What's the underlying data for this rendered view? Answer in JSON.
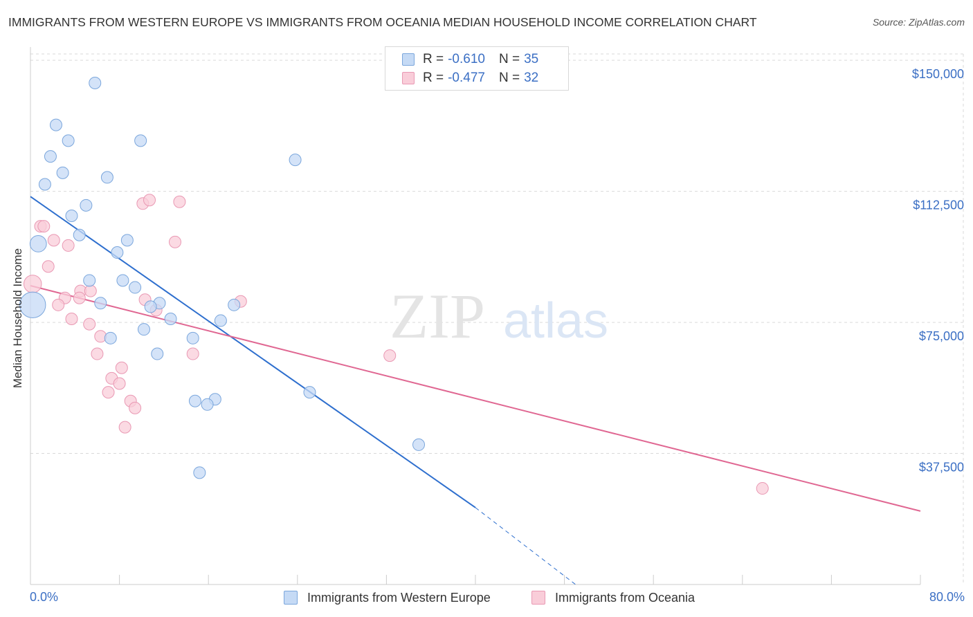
{
  "title": "IMMIGRANTS FROM WESTERN EUROPE VS IMMIGRANTS FROM OCEANIA MEDIAN HOUSEHOLD INCOME CORRELATION CHART",
  "source": "Source: ZipAtlas.com",
  "watermark": {
    "zip": "ZIP",
    "atlas": "atlas"
  },
  "colors": {
    "blue_fill": "#c5daf5",
    "blue_stroke": "#7aa6dc",
    "blue_line": "#2e6fce",
    "pink_fill": "#f9cdd9",
    "pink_stroke": "#e998b3",
    "pink_line": "#e06792",
    "axis_text": "#3b6fc4",
    "grid": "#d9d9d9"
  },
  "legend_top": {
    "rows": [
      {
        "r_label": "R = ",
        "r_value": "-0.610",
        "n_label": "N = ",
        "n_value": "35"
      },
      {
        "r_label": "R = ",
        "r_value": "-0.477",
        "n_label": "N = ",
        "n_value": "32"
      }
    ]
  },
  "legend_bottom": {
    "series1": "Immigrants from Western Europe",
    "series2": "Immigrants from Oceania"
  },
  "chart_data": {
    "type": "scatter",
    "title": "IMMIGRANTS FROM WESTERN EUROPE VS IMMIGRANTS FROM OCEANIA MEDIAN HOUSEHOLD INCOME CORRELATION CHART",
    "xlabel": "",
    "ylabel": "Median Household Income",
    "xlim": [
      0,
      80
    ],
    "ylim": [
      0,
      153000
    ],
    "x_tick_labels": [
      "0.0%",
      "80.0%"
    ],
    "y_ticks": [
      37500,
      75000,
      112500,
      150000
    ],
    "y_tick_labels": [
      "$37,500",
      "$75,000",
      "$112,500",
      "$150,000"
    ],
    "grid": true,
    "series": [
      {
        "name": "Immigrants from Western Europe",
        "r": -0.61,
        "n": 35,
        "trend": {
          "x0": 0,
          "y0": 111000,
          "x1": 40,
          "y1": 22000,
          "dash_x1": 49,
          "dash_y1": 0
        },
        "points": [
          {
            "x": 5.8,
            "y": 143500,
            "s": 1
          },
          {
            "x": 2.3,
            "y": 131500,
            "s": 1
          },
          {
            "x": 3.4,
            "y": 127000,
            "s": 1
          },
          {
            "x": 9.9,
            "y": 127000,
            "s": 1
          },
          {
            "x": 1.8,
            "y": 122500,
            "s": 1
          },
          {
            "x": 2.9,
            "y": 117800,
            "s": 1
          },
          {
            "x": 23.8,
            "y": 121500,
            "s": 1
          },
          {
            "x": 6.9,
            "y": 116500,
            "s": 1
          },
          {
            "x": 1.3,
            "y": 114500,
            "s": 1
          },
          {
            "x": 5.0,
            "y": 108500,
            "s": 1
          },
          {
            "x": 3.7,
            "y": 105500,
            "s": 1
          },
          {
            "x": 4.4,
            "y": 100000,
            "s": 1
          },
          {
            "x": 0.7,
            "y": 97500,
            "s": 1.4
          },
          {
            "x": 8.7,
            "y": 98500,
            "s": 1
          },
          {
            "x": 7.8,
            "y": 95000,
            "s": 1
          },
          {
            "x": 5.3,
            "y": 87000,
            "s": 1
          },
          {
            "x": 8.3,
            "y": 87000,
            "s": 1
          },
          {
            "x": 9.4,
            "y": 85000,
            "s": 1
          },
          {
            "x": 0.2,
            "y": 80000,
            "s": 2.2
          },
          {
            "x": 6.3,
            "y": 80500,
            "s": 1
          },
          {
            "x": 11.6,
            "y": 80500,
            "s": 1
          },
          {
            "x": 10.8,
            "y": 79500,
            "s": 1
          },
          {
            "x": 12.6,
            "y": 76000,
            "s": 1
          },
          {
            "x": 17.1,
            "y": 75500,
            "s": 1
          },
          {
            "x": 18.3,
            "y": 80000,
            "s": 1
          },
          {
            "x": 10.2,
            "y": 73000,
            "s": 1
          },
          {
            "x": 7.2,
            "y": 70500,
            "s": 1
          },
          {
            "x": 14.6,
            "y": 70500,
            "s": 1
          },
          {
            "x": 11.4,
            "y": 66000,
            "s": 1
          },
          {
            "x": 25.1,
            "y": 55000,
            "s": 1
          },
          {
            "x": 14.8,
            "y": 52500,
            "s": 1
          },
          {
            "x": 16.6,
            "y": 53000,
            "s": 1
          },
          {
            "x": 15.9,
            "y": 51500,
            "s": 1
          },
          {
            "x": 34.9,
            "y": 40000,
            "s": 1
          },
          {
            "x": 15.2,
            "y": 32000,
            "s": 1
          }
        ]
      },
      {
        "name": "Immigrants from Oceania",
        "r": -0.477,
        "n": 32,
        "trend": {
          "x0": 0,
          "y0": 85500,
          "x1": 80,
          "y1": 21000
        },
        "points": [
          {
            "x": 10.1,
            "y": 109000,
            "s": 1
          },
          {
            "x": 10.7,
            "y": 110000,
            "s": 1
          },
          {
            "x": 13.4,
            "y": 109500,
            "s": 1
          },
          {
            "x": 0.9,
            "y": 102500,
            "s": 1
          },
          {
            "x": 1.2,
            "y": 102500,
            "s": 1
          },
          {
            "x": 2.1,
            "y": 98500,
            "s": 1
          },
          {
            "x": 13.0,
            "y": 98000,
            "s": 1
          },
          {
            "x": 3.4,
            "y": 97000,
            "s": 1
          },
          {
            "x": 1.6,
            "y": 91000,
            "s": 1
          },
          {
            "x": 0.2,
            "y": 86000,
            "s": 1.5
          },
          {
            "x": 4.5,
            "y": 84000,
            "s": 1
          },
          {
            "x": 5.4,
            "y": 84000,
            "s": 1
          },
          {
            "x": 3.1,
            "y": 82000,
            "s": 1
          },
          {
            "x": 4.4,
            "y": 82000,
            "s": 1
          },
          {
            "x": 10.3,
            "y": 81500,
            "s": 1
          },
          {
            "x": 18.9,
            "y": 81000,
            "s": 1
          },
          {
            "x": 2.5,
            "y": 80000,
            "s": 1
          },
          {
            "x": 11.3,
            "y": 78500,
            "s": 1
          },
          {
            "x": 3.7,
            "y": 76000,
            "s": 1
          },
          {
            "x": 5.3,
            "y": 74500,
            "s": 1
          },
          {
            "x": 6.3,
            "y": 71000,
            "s": 1
          },
          {
            "x": 6.0,
            "y": 66000,
            "s": 1
          },
          {
            "x": 14.6,
            "y": 66000,
            "s": 1
          },
          {
            "x": 32.3,
            "y": 65500,
            "s": 1
          },
          {
            "x": 8.2,
            "y": 62000,
            "s": 1
          },
          {
            "x": 7.3,
            "y": 59000,
            "s": 1
          },
          {
            "x": 8.0,
            "y": 57500,
            "s": 1
          },
          {
            "x": 7.0,
            "y": 55000,
            "s": 1
          },
          {
            "x": 9.0,
            "y": 52500,
            "s": 1
          },
          {
            "x": 9.4,
            "y": 50500,
            "s": 1
          },
          {
            "x": 8.5,
            "y": 45000,
            "s": 1
          },
          {
            "x": 65.8,
            "y": 27500,
            "s": 1
          }
        ]
      }
    ]
  }
}
